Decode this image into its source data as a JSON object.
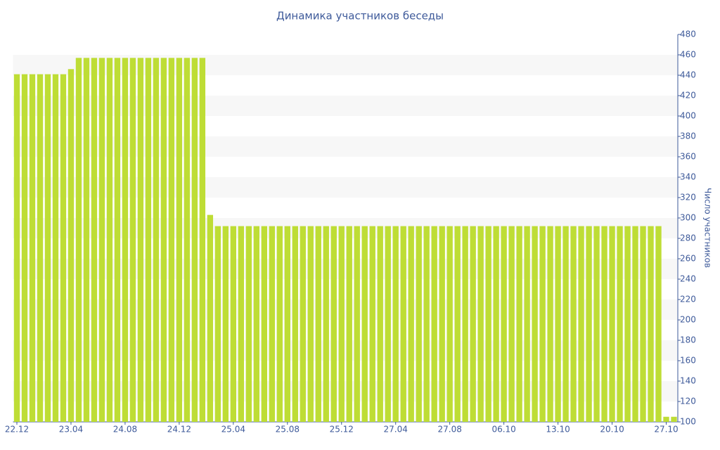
{
  "chart_data": {
    "type": "bar",
    "title": "Динамика участников беседы",
    "y_axis_label": "Число участников",
    "categories": [
      "22.12",
      null,
      null,
      null,
      null,
      null,
      null,
      "23.04",
      null,
      null,
      null,
      null,
      null,
      null,
      "24.08",
      null,
      null,
      null,
      null,
      null,
      null,
      "24.12",
      null,
      null,
      null,
      null,
      null,
      null,
      "25.04",
      null,
      null,
      null,
      null,
      null,
      null,
      "25.08",
      null,
      null,
      null,
      null,
      null,
      null,
      "25.12",
      null,
      null,
      null,
      null,
      null,
      null,
      "27.04",
      null,
      null,
      null,
      null,
      null,
      null,
      "27.08",
      null,
      null,
      null,
      null,
      null,
      null,
      "06.10",
      null,
      null,
      null,
      null,
      null,
      null,
      "13.10",
      null,
      null,
      null,
      null,
      null,
      null,
      "20.10",
      null,
      null,
      null,
      null,
      null,
      null,
      "27.10",
      null
    ],
    "values": [
      441,
      441,
      441,
      441,
      441,
      441,
      441,
      446,
      457,
      457,
      457,
      457,
      457,
      457,
      457,
      457,
      457,
      457,
      457,
      457,
      457,
      457,
      457,
      457,
      457,
      303,
      292,
      292,
      292,
      292,
      292,
      292,
      292,
      292,
      292,
      292,
      292,
      292,
      292,
      292,
      292,
      292,
      292,
      292,
      292,
      292,
      292,
      292,
      292,
      292,
      292,
      292,
      292,
      292,
      292,
      292,
      292,
      292,
      292,
      292,
      292,
      292,
      292,
      292,
      292,
      292,
      292,
      292,
      292,
      292,
      292,
      292,
      292,
      292,
      292,
      292,
      292,
      292,
      292,
      292,
      292,
      292,
      292,
      292,
      105,
      105
    ],
    "color": "#bedd35",
    "ylim": [
      100,
      480
    ],
    "yticks": [
      100,
      120,
      140,
      160,
      180,
      200,
      220,
      240,
      260,
      280,
      300,
      320,
      340,
      360,
      380,
      400,
      420,
      440,
      460,
      480
    ],
    "grid": "bands",
    "y_axis_side": "right"
  }
}
